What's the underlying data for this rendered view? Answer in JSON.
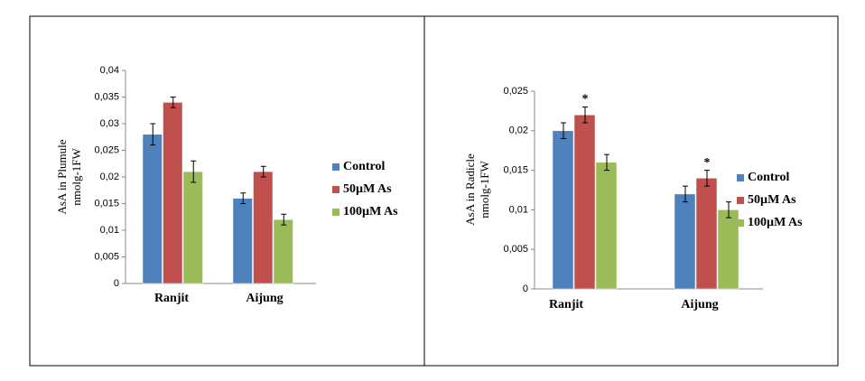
{
  "chart_data": [
    {
      "type": "bar",
      "ylabel": [
        "AsA in Plumule",
        "nmolg-1FW"
      ],
      "categories": [
        "Ranjit",
        "Aijung"
      ],
      "series": [
        {
          "name": "Control",
          "color": "#4f81bd",
          "values": [
            0.028,
            0.016
          ],
          "errors": [
            0.002,
            0.001
          ]
        },
        {
          "name": "50µM As",
          "color": "#c0504d",
          "values": [
            0.034,
            0.021
          ],
          "errors": [
            0.001,
            0.001
          ]
        },
        {
          "name": "100µM As",
          "color": "#9bbb59",
          "values": [
            0.021,
            0.012
          ],
          "errors": [
            0.002,
            0.001
          ]
        }
      ],
      "ylim": [
        0,
        0.04
      ],
      "yticks": [
        0,
        {
          "value": 0.005,
          "label": "0,005"
        },
        {
          "value": 0.01,
          "label": "0,01"
        },
        {
          "value": 0.015,
          "label": "0,015"
        },
        {
          "value": 0.02,
          "label": "0,02"
        },
        {
          "value": 0.025,
          "label": "0,025"
        },
        {
          "value": 0.03,
          "label": "0,03"
        },
        {
          "value": 0.035,
          "label": "0,035"
        },
        {
          "value": 0.04,
          "label": "0,04"
        }
      ],
      "legend": "right"
    },
    {
      "type": "bar",
      "ylabel": [
        "AsA in Radicle",
        "nmolg-1FW"
      ],
      "categories": [
        "Ranjit",
        "Aijung"
      ],
      "series": [
        {
          "name": "Control",
          "color": "#4f81bd",
          "values": [
            0.02,
            0.012
          ],
          "errors": [
            0.001,
            0.001
          ]
        },
        {
          "name": "50µM As",
          "color": "#c0504d",
          "values": [
            0.022,
            0.014
          ],
          "errors": [
            0.001,
            0.001
          ]
        },
        {
          "name": "100µM As",
          "color": "#9bbb59",
          "values": [
            0.016,
            0.01
          ],
          "errors": [
            0.001,
            0.001
          ]
        }
      ],
      "annotations": [
        "*",
        "*"
      ],
      "ylim": [
        0,
        0.025
      ],
      "yticks": [
        0,
        {
          "value": 0.005,
          "label": "0,005"
        },
        {
          "value": 0.01,
          "label": "0,01"
        },
        {
          "value": 0.015,
          "label": "0,015"
        },
        {
          "value": 0.02,
          "label": "0,02"
        },
        {
          "value": 0.025,
          "label": "0,025"
        }
      ],
      "legend": "right"
    }
  ]
}
